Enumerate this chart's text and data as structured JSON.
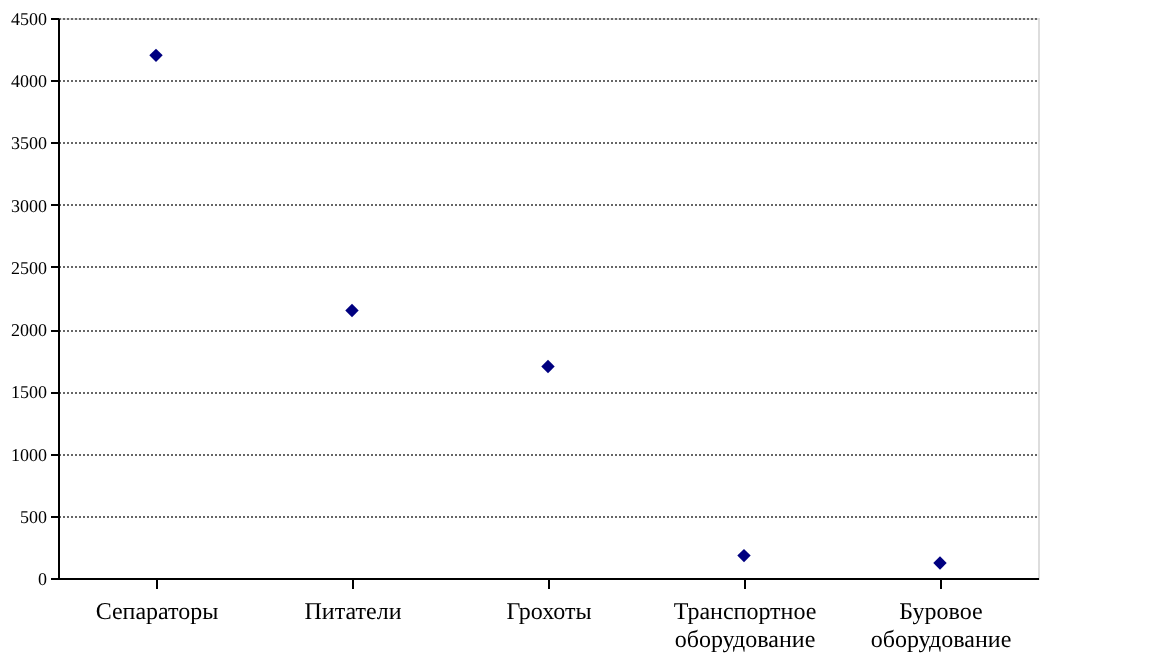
{
  "chart_data": {
    "type": "scatter",
    "categories": [
      "Сепараторы",
      "Питатели",
      "Грохоты",
      "Транспортное оборудование",
      "Буровое оборудование"
    ],
    "values": [
      4200,
      2150,
      1700,
      180,
      120
    ],
    "color": "#000080",
    "marker": "diamond",
    "ylim": [
      0,
      4500
    ],
    "yticks": [
      0,
      500,
      1000,
      1500,
      2000,
      2500,
      3000,
      3500,
      4000,
      4500
    ],
    "grid": "y"
  }
}
